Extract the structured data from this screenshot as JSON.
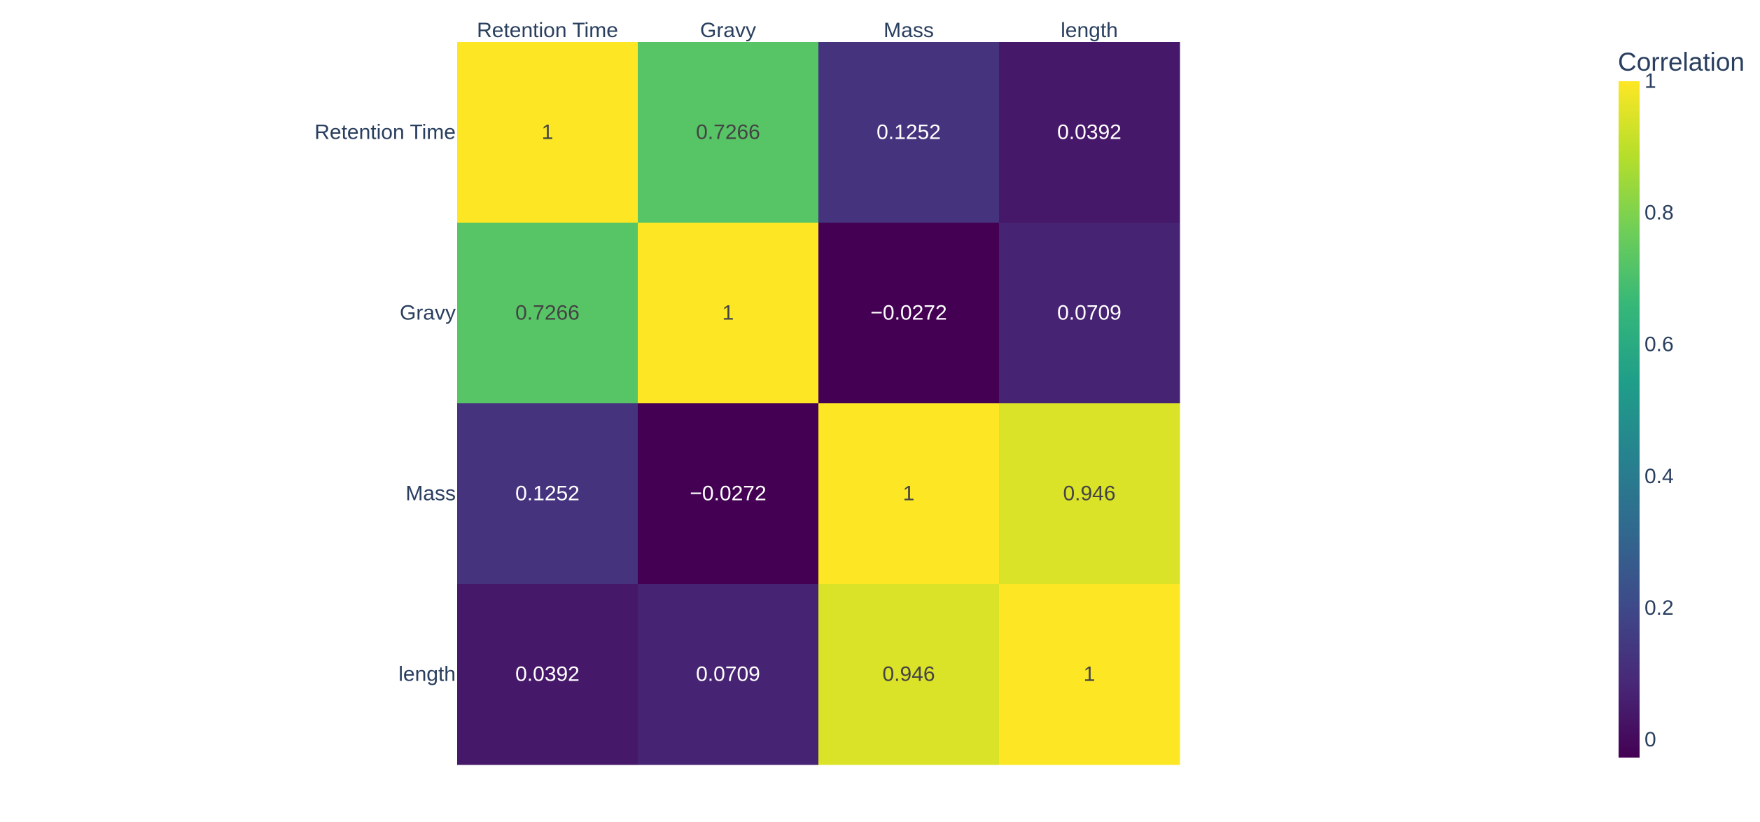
{
  "chart_data": {
    "type": "heatmap",
    "title": "",
    "x_categories": [
      "Retention Time",
      "Gravy",
      "Mass",
      "length"
    ],
    "y_categories": [
      "Retention Time",
      "Gravy",
      "Mass",
      "length"
    ],
    "x_axis_position": "top",
    "values": [
      [
        1,
        0.7266,
        0.1252,
        0.0392
      ],
      [
        0.7266,
        1,
        -0.0272,
        0.0709
      ],
      [
        0.1252,
        -0.0272,
        1,
        0.946
      ],
      [
        0.0392,
        0.0709,
        0.946,
        1
      ]
    ],
    "cell_labels": [
      [
        "1",
        "0.7266",
        "0.1252",
        "0.0392"
      ],
      [
        "0.7266",
        "1",
        "−0.0272",
        "0.0709"
      ],
      [
        "0.1252",
        "−0.0272",
        "1",
        "0.946"
      ],
      [
        "0.0392",
        "0.0709",
        "0.946",
        "1"
      ]
    ],
    "colorscale": "Viridis",
    "zmin": -0.0272,
    "zmax": 1,
    "grid": false,
    "colorbar": {
      "title": "Correlation",
      "placement": "right",
      "ticks": [
        0,
        0.2,
        0.4,
        0.6,
        0.8,
        1
      ],
      "tick_labels": [
        "0",
        "0.2",
        "0.4",
        "0.6",
        "0.8",
        "1"
      ]
    }
  },
  "colors": {
    "axis_text": "#2a3f5f",
    "label_light": "#ffffff",
    "label_dark": "#444444"
  }
}
